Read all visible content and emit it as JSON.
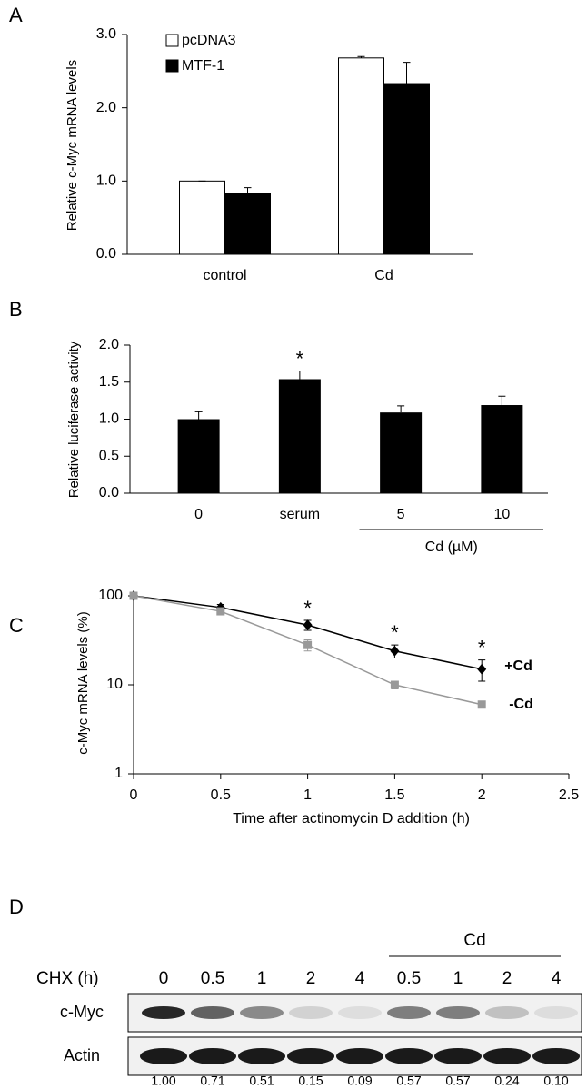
{
  "chart_data": [
    {
      "panel": "A",
      "type": "bar",
      "ylabel": "Relative c-Myc mRNA levels",
      "categories": [
        "control",
        "Cd"
      ],
      "series": [
        {
          "name": "pcDNA3",
          "color": "#ffffff",
          "values": [
            1.0,
            2.68
          ],
          "errors": [
            0,
            0.02
          ]
        },
        {
          "name": "MTF-1",
          "color": "#000000",
          "values": [
            0.83,
            2.33
          ],
          "errors": [
            0.08,
            0.29
          ]
        }
      ],
      "ylim": [
        0,
        3
      ],
      "yticks": [
        {
          "value": 0,
          "label": "0.0"
        },
        {
          "value": 1,
          "label": "1.0"
        },
        {
          "value": 2,
          "label": "2.0"
        },
        {
          "value": 3,
          "label": "3.0"
        }
      ],
      "legend": "upper-left"
    },
    {
      "panel": "B",
      "type": "bar",
      "ylabel": "Relative luciferase activity",
      "categories": [
        "0",
        "serum",
        "5",
        "10"
      ],
      "values": [
        1.0,
        1.54,
        1.09,
        1.19
      ],
      "errors": [
        0.1,
        0.11,
        0.09,
        0.12
      ],
      "color": "#000000",
      "ylim": [
        0,
        2
      ],
      "yticks": [
        {
          "value": 0,
          "label": "0.0"
        },
        {
          "value": 0.5,
          "label": "0.5"
        },
        {
          "value": 1,
          "label": "1.0"
        },
        {
          "value": 1.5,
          "label": "1.5"
        },
        {
          "value": 2,
          "label": "2.0"
        }
      ],
      "annotation": "*",
      "annotated": [
        false,
        true,
        false,
        false
      ],
      "group_label": "Cd (µM)",
      "grouped": [
        false,
        false,
        true,
        true
      ]
    },
    {
      "panel": "C",
      "type": "line",
      "xlabel": "Time after actinomycin D addition (h)",
      "ylabel": "c-Myc mRNA levels (%)",
      "x": [
        0,
        0.5,
        1,
        1.5,
        2
      ],
      "series": [
        {
          "name": "+Cd",
          "color": "#000000",
          "marker": "diamond",
          "values": [
            100,
            74,
            47,
            24,
            15
          ],
          "errors": [
            0,
            6,
            6,
            4,
            4
          ]
        },
        {
          "name": "-Cd",
          "color": "#999999",
          "marker": "square",
          "values": [
            100,
            67,
            28,
            10,
            6
          ],
          "errors": [
            0,
            5,
            4,
            1,
            0
          ]
        }
      ],
      "xlim": [
        0,
        2.5
      ],
      "xticks": [
        0,
        0.5,
        1,
        1.5,
        2,
        2.5
      ],
      "ylim": [
        1,
        100
      ],
      "yticks": [
        1,
        10,
        100
      ],
      "log_y": true,
      "annotation": "*",
      "annotated": [
        false,
        false,
        true,
        true,
        true
      ]
    },
    {
      "panel": "D",
      "type": "blot",
      "axis_label": "CHX (h)",
      "categories": [
        "0",
        "0.5",
        "1",
        "2",
        "4",
        "0.5",
        "1",
        "2",
        "4"
      ],
      "group_label": "Cd",
      "grouped": [
        false,
        false,
        false,
        false,
        false,
        true,
        true,
        true,
        true
      ],
      "rows": [
        "c-Myc",
        "Actin"
      ],
      "values": [
        1.0,
        0.71,
        0.51,
        0.15,
        0.09,
        0.57,
        0.57,
        0.24,
        0.1
      ],
      "value_labels": [
        "1.00",
        "0.71",
        "0.51",
        "0.15",
        "0.09",
        "0.57",
        "0.57",
        "0.24",
        "0.10"
      ]
    }
  ]
}
